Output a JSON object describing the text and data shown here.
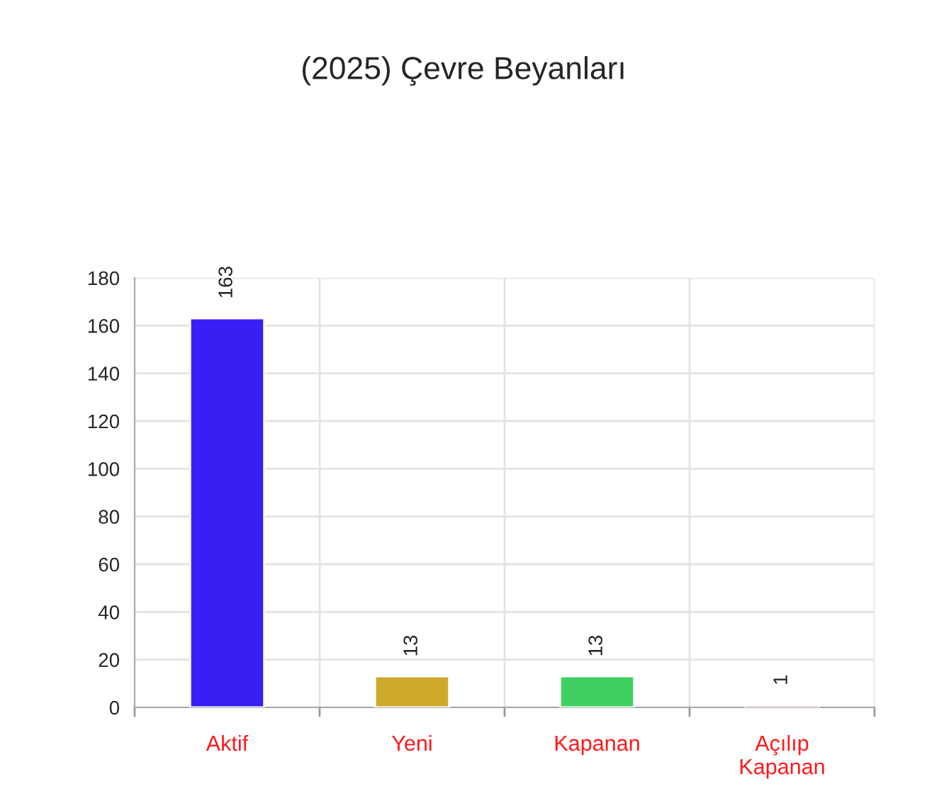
{
  "chart_data": {
    "type": "bar",
    "title": "(2025) Çevre Beyanları",
    "categories": [
      "Aktif",
      "Yeni",
      "Kapanan",
      "Açılıp\nKapanan"
    ],
    "values": [
      163,
      13,
      13,
      1
    ],
    "colors": [
      "#3a1ff5",
      "#cfa92c",
      "#3fd060",
      "#e07c7c"
    ],
    "ylim": [
      0,
      180
    ],
    "yticks": [
      0,
      20,
      40,
      60,
      80,
      100,
      120,
      140,
      160,
      180
    ],
    "grid": true,
    "data_labels": true
  }
}
